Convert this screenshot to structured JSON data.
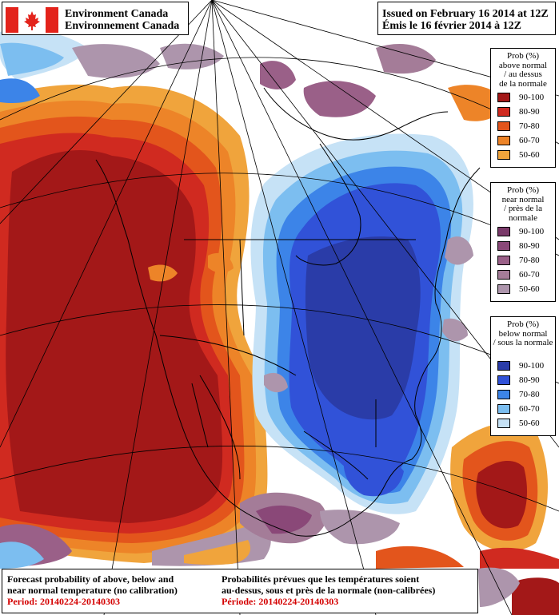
{
  "header": {
    "agency_en": "Environment Canada",
    "agency_fr": "Environnement Canada",
    "issued_en": "Issued on February 16 2014 at 12Z",
    "issued_fr": "Émis le 16 février 2014 à 12Z"
  },
  "legends": {
    "above": {
      "title_lines": [
        "Prob (%)",
        "above normal",
        "/ au dessus",
        "de la normale"
      ],
      "items": [
        {
          "label": "90-100",
          "color": "#a31818"
        },
        {
          "label": "80-90",
          "color": "#d02a20"
        },
        {
          "label": "70-80",
          "color": "#e3551c"
        },
        {
          "label": "60-70",
          "color": "#ed8428"
        },
        {
          "label": "50-60",
          "color": "#f0a43c"
        }
      ]
    },
    "near": {
      "title_lines": [
        "Prob (%)",
        "near normal",
        "/ près de la",
        "normale"
      ],
      "items": [
        {
          "label": "90-100",
          "color": "#7a3a6a"
        },
        {
          "label": "80-90",
          "color": "#8a4878"
        },
        {
          "label": "70-80",
          "color": "#9a6088"
        },
        {
          "label": "60-70",
          "color": "#a47c98"
        },
        {
          "label": "50-60",
          "color": "#ad95ac"
        }
      ]
    },
    "below": {
      "title_lines": [
        "Prob (%)",
        "below normal",
        "/ sous la normale"
      ],
      "items": [
        {
          "label": "90-100",
          "color": "#2a3ca8"
        },
        {
          "label": "80-90",
          "color": "#3152d8"
        },
        {
          "label": "70-80",
          "color": "#3c84e8"
        },
        {
          "label": "60-70",
          "color": "#7cbef0"
        },
        {
          "label": "50-60",
          "color": "#c6e2f6"
        }
      ]
    }
  },
  "caption": {
    "en_line1": "Forecast probability of above, below and",
    "en_line2": "near normal temperature (no calibration)",
    "en_period": "Period: 20140224-20140303",
    "fr_line1": "Probabilités prévues que les températures soient",
    "fr_line2": "au-dessus, sous et près de la normale (non-calibrées)",
    "fr_period": "Période: 20140224-20140303"
  }
}
